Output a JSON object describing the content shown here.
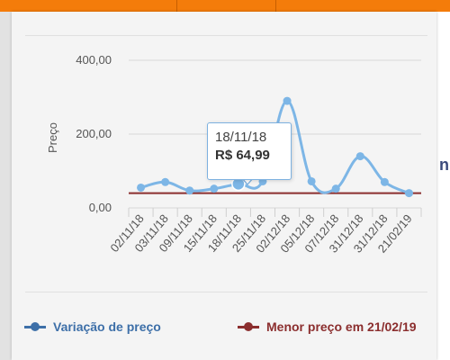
{
  "colors": {
    "accent_bar": "#f47c0a",
    "series_price": "#7db6e6",
    "series_price_legend": "#3d6fa8",
    "series_min": "#8b2e2e",
    "grid": "#d8d8d8",
    "axis_text": "#555555"
  },
  "tooltip": {
    "date": "18/11/18",
    "price": "R$ 64,99"
  },
  "chart_data": {
    "type": "line",
    "ylabel": "Preço",
    "ylim": [
      0,
      400
    ],
    "y_ticks": [
      "0,00",
      "200,00",
      "400,00"
    ],
    "y_tick_values": [
      0,
      200,
      400
    ],
    "categories": [
      "02/11/18",
      "03/11/18",
      "09/11/18",
      "15/11/18",
      "18/11/18",
      "25/11/18",
      "02/12/18",
      "05/12/18",
      "07/12/18",
      "31/12/18",
      "31/12/18",
      "21/02/19"
    ],
    "series": [
      {
        "name": "Variação de preço",
        "values": [
          55,
          70,
          47,
          52,
          64.99,
          72,
          290,
          72,
          52,
          140,
          70,
          40
        ]
      },
      {
        "name": "Menor preço em 21/02/19",
        "values": [
          40,
          40,
          40,
          40,
          40,
          40,
          40,
          40,
          40,
          40,
          40,
          40
        ]
      }
    ],
    "highlighted_index": 4,
    "grid": true,
    "legend_position": "bottom"
  }
}
